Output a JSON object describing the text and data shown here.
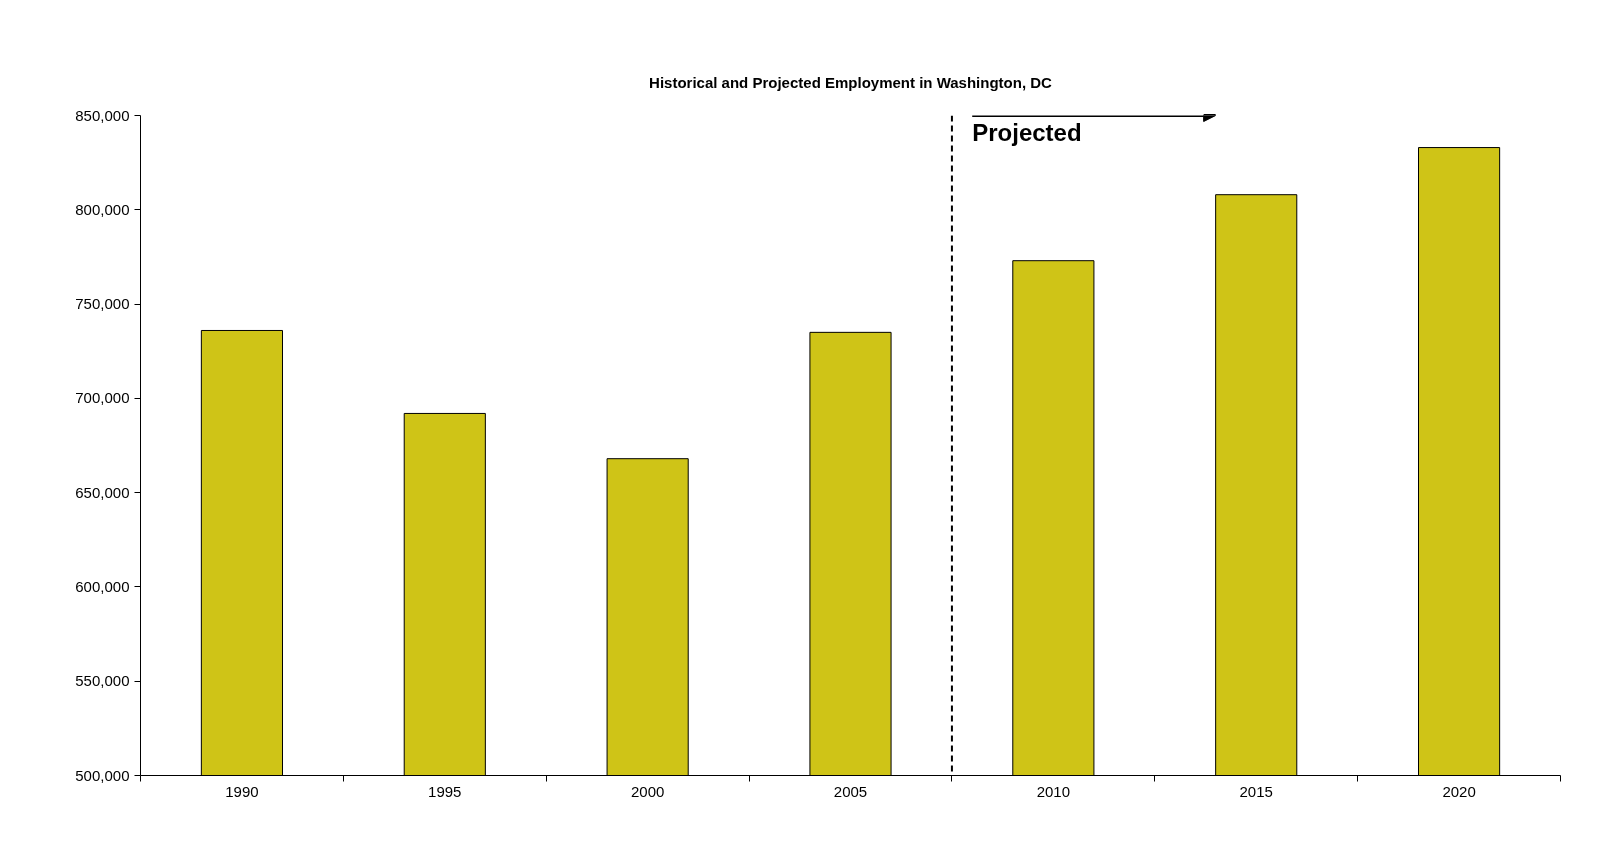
{
  "chart_data": {
    "type": "bar",
    "title": "Historical and Projected Employment in Washington, DC",
    "x": [
      1990,
      1995,
      2000,
      2005,
      2010,
      2015,
      2020
    ],
    "values": [
      736000,
      692000,
      668000,
      735000,
      773000,
      808000,
      833000
    ],
    "color": "#cfc417",
    "xlim": [
      1987.5,
      2022.5
    ],
    "xticks": [
      1990,
      1995,
      2000,
      2005,
      2010,
      2015,
      2020
    ],
    "ylim": [
      500000,
      850000
    ],
    "yticks": [
      {
        "value": 500000,
        "label": "500,000"
      },
      {
        "value": 550000,
        "label": "550,000"
      },
      {
        "value": 600000,
        "label": "600,000"
      },
      {
        "value": 650000,
        "label": "650,000"
      },
      {
        "value": 700000,
        "label": "700,000"
      },
      {
        "value": 750000,
        "label": "750,000"
      },
      {
        "value": 800000,
        "label": "800,000"
      },
      {
        "value": 850000,
        "label": "850,000"
      }
    ],
    "ref_lines": [
      {
        "axis": "x",
        "value": 2007.5,
        "label": "Projected",
        "line_style": "dashed",
        "color": "#000000"
      }
    ],
    "grid": false
  }
}
